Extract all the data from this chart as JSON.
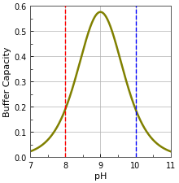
{
  "pKa": 9.0,
  "pH_min": 7.0,
  "pH_max": 11.0,
  "pH_ticks": [
    7,
    8,
    9,
    10,
    11
  ],
  "y_min": 0.0,
  "y_max": 0.6,
  "y_ticks": [
    0.0,
    0.1,
    0.2,
    0.3,
    0.4,
    0.5,
    0.6
  ],
  "curve_color": "#808000",
  "curve_linewidth": 1.8,
  "red_vline_x": 8.0,
  "red_vline_color": "#ff0000",
  "blue_vline_x": 10.0,
  "blue_vline_color": "#0000ff",
  "vline_linewidth": 1.0,
  "xlabel": "pH",
  "ylabel": "Buffer Capacity",
  "xlabel_fontsize": 8,
  "ylabel_fontsize": 8,
  "tick_fontsize": 7,
  "background_color": "#ffffff",
  "grid_color": "#b0b0b0",
  "grid_linewidth": 0.5,
  "figwidth": 2.2,
  "figheight": 2.26,
  "dpi": 100
}
